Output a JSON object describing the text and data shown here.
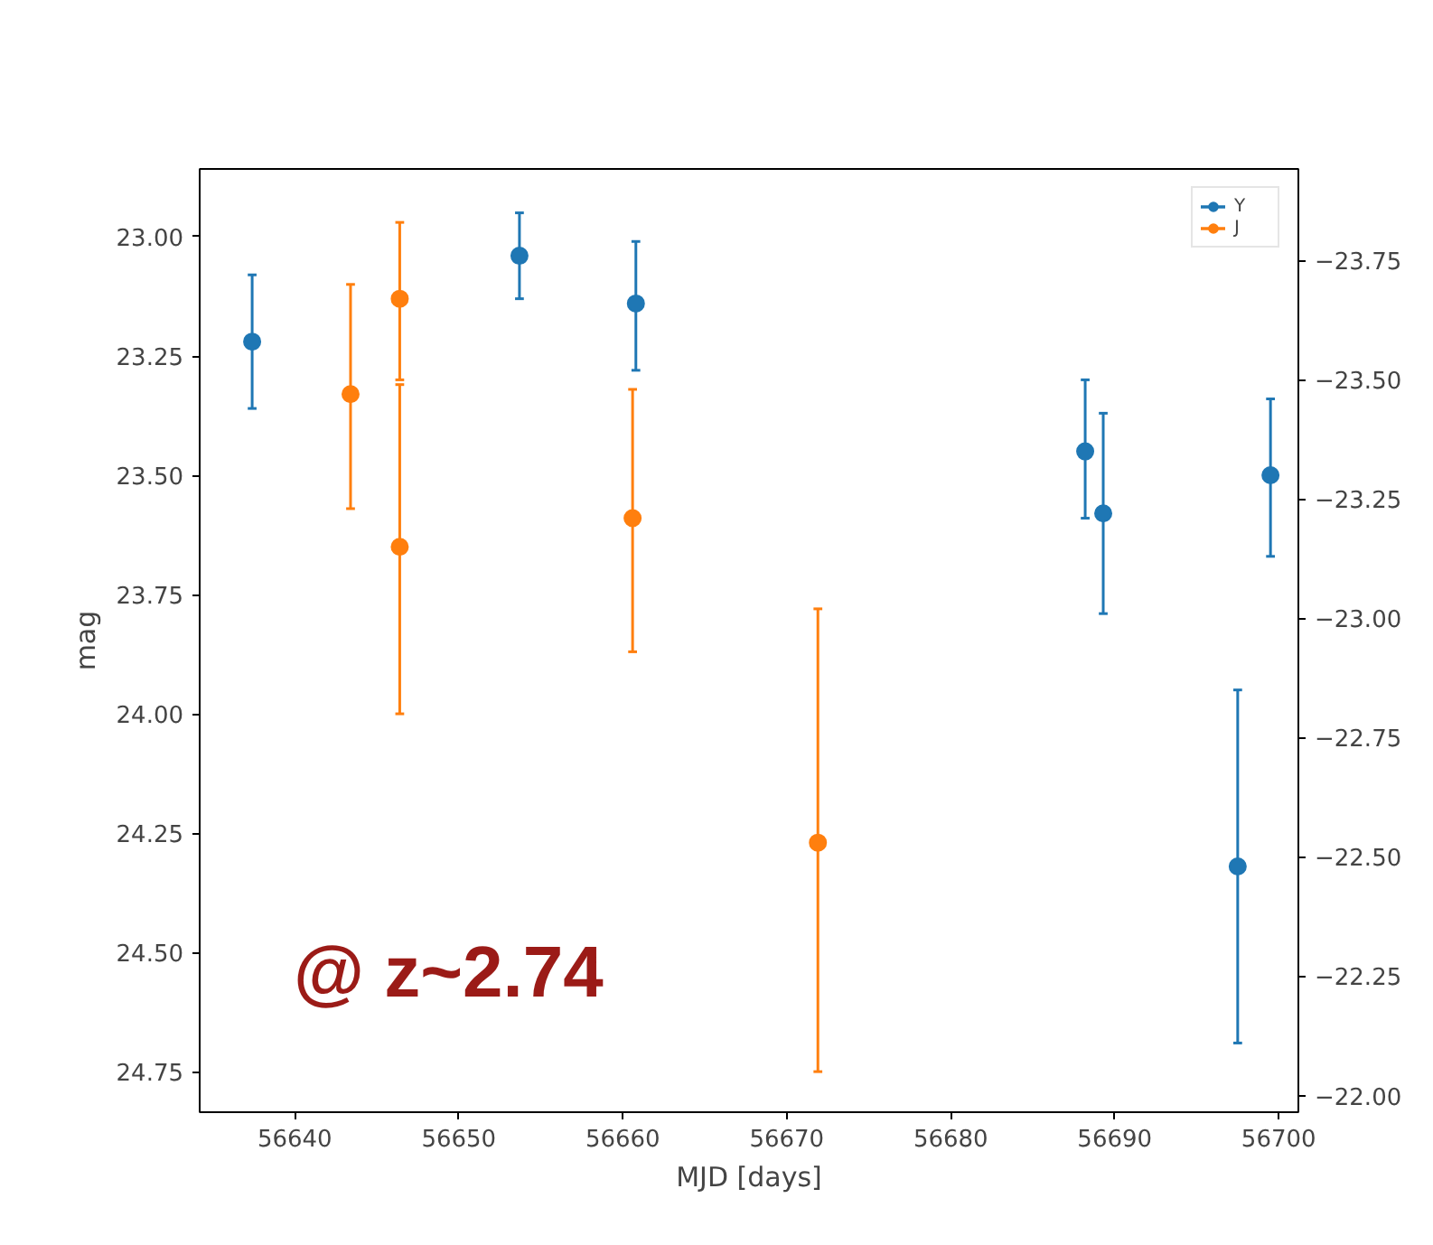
{
  "chart_data": {
    "type": "scatter",
    "xlabel": "MJD [days]",
    "ylabel": "mag",
    "xlim": [
      56634.2,
      56701.2
    ],
    "xticks": [
      56640,
      56650,
      56660,
      56670,
      56680,
      56690,
      56700
    ],
    "ylim": [
      24.835,
      22.858
    ],
    "yticks": [
      {
        "value": 23,
        "label": "23.00"
      },
      23.25,
      {
        "value": 23.5,
        "label": "23.50"
      },
      23.75,
      {
        "value": 24,
        "label": "24.00"
      },
      24.25,
      {
        "value": 24.5,
        "label": "24.50"
      },
      24.75
    ],
    "y2lim": [
      -21.965,
      -23.942
    ],
    "y2ticks": [
      -23.75,
      {
        "value": -23.5,
        "label": "−23.50"
      },
      -23.25,
      {
        "value": -23,
        "label": "−23.00"
      },
      -22.75,
      {
        "value": -22.5,
        "label": "−22.50"
      },
      -22.25,
      {
        "value": -22,
        "label": "−22.00"
      }
    ],
    "marker": "circle",
    "grid": false,
    "legend": "top right",
    "annotations": [
      "@ z~2.74"
    ],
    "series": [
      {
        "name": "Y",
        "color": "#1f77b4",
        "x": [
          56637.4,
          56653.7,
          56660.8,
          56688.2,
          56689.3,
          56697.5,
          56699.5
        ],
        "values": [
          23.22,
          23.04,
          23.14,
          23.45,
          23.58,
          24.32,
          23.5
        ],
        "errors": [
          [
            23.08,
            23.36
          ],
          [
            22.95,
            23.13
          ],
          [
            23.01,
            23.28
          ],
          [
            23.3,
            23.59
          ],
          [
            23.37,
            23.79
          ],
          [
            23.95,
            24.69
          ],
          [
            23.34,
            23.67
          ]
        ]
      },
      {
        "name": "J",
        "color": "#ff7f0e",
        "x": [
          56643.4,
          56646.4,
          56646.4,
          56660.6,
          56671.9
        ],
        "values": [
          23.33,
          23.13,
          23.65,
          23.59,
          24.27
        ],
        "errors": [
          [
            23.1,
            23.57
          ],
          [
            22.97,
            23.3
          ],
          [
            23.31,
            24.0
          ],
          [
            23.32,
            23.87
          ],
          [
            23.78,
            24.75
          ]
        ]
      }
    ]
  }
}
